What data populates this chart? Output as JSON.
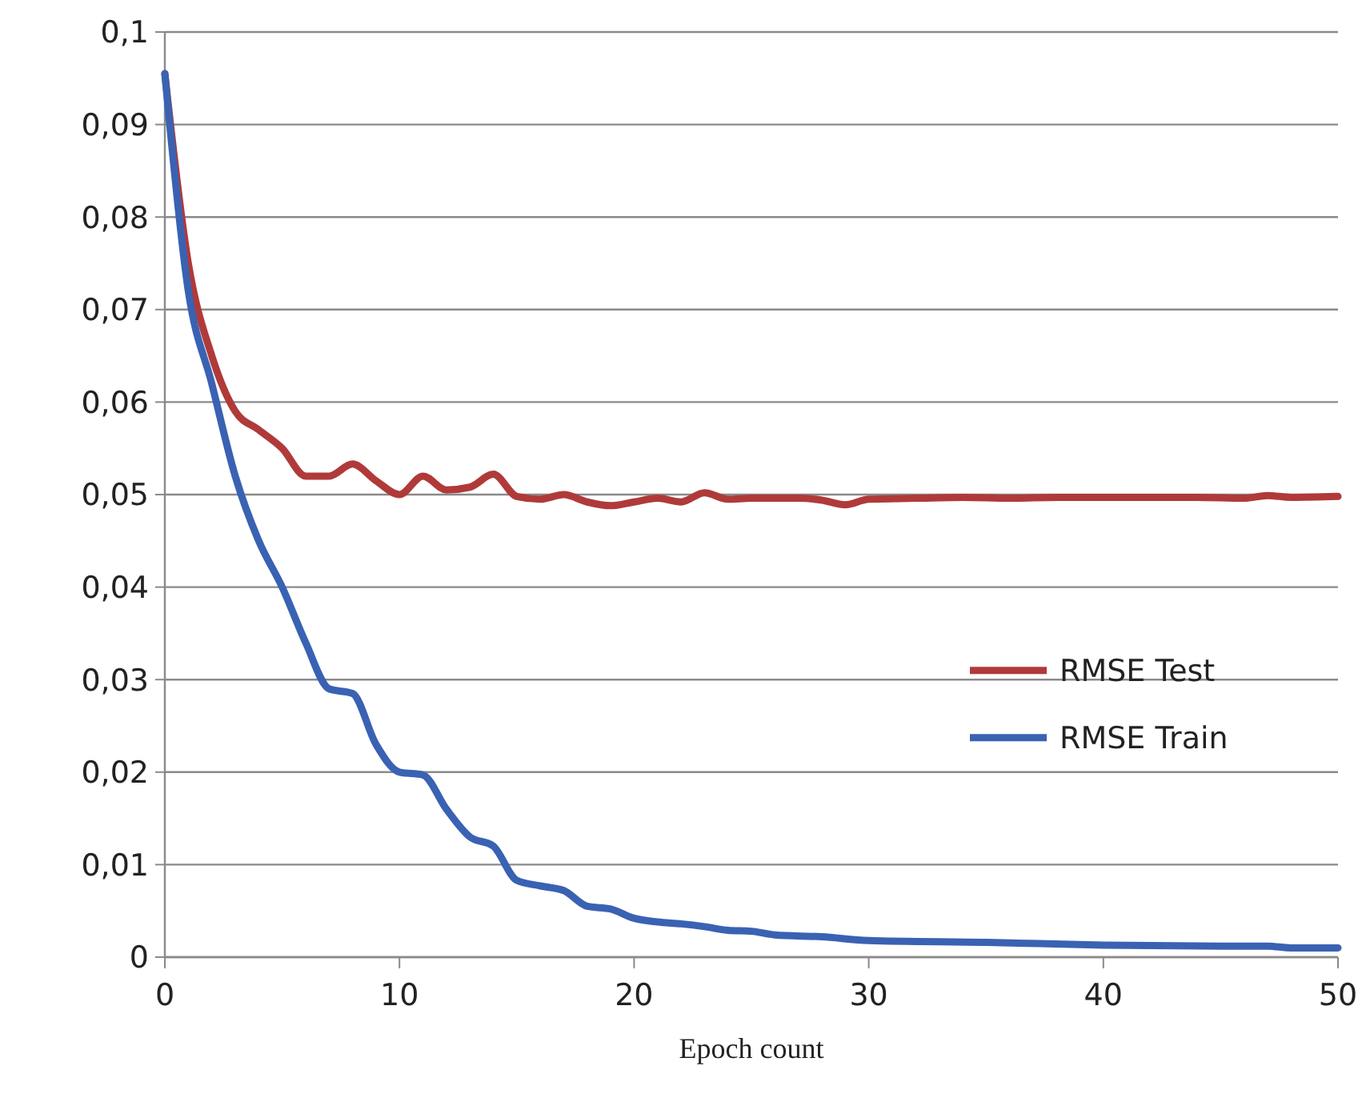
{
  "chart_data": {
    "type": "line",
    "xlabel": "Epoch count",
    "xlim": [
      0,
      50
    ],
    "xticks": [
      0,
      10,
      20,
      30,
      40,
      50
    ],
    "ylim": [
      0,
      0.1
    ],
    "yticks": [
      {
        "value": 0,
        "label": "0"
      },
      {
        "value": 0.01,
        "label": "0,01"
      },
      {
        "value": 0.02,
        "label": "0,02"
      },
      {
        "value": 0.03,
        "label": "0,03"
      },
      {
        "value": 0.04,
        "label": "0,04"
      },
      {
        "value": 0.05,
        "label": "0,05"
      },
      {
        "value": 0.06,
        "label": "0,06"
      },
      {
        "value": 0.07,
        "label": "0,07"
      },
      {
        "value": 0.08,
        "label": "0,08"
      },
      {
        "value": 0.09,
        "label": "0,09"
      },
      {
        "value": 0.1,
        "label": "0,1"
      }
    ],
    "grid": "y",
    "legend": "right",
    "marker": "none",
    "line_style": "solid",
    "series": [
      {
        "name": "RMSE Test",
        "color": "#b03a3a",
        "x": [
          0,
          1,
          2,
          3,
          4,
          5,
          6,
          7,
          8,
          9,
          10,
          11,
          12,
          13,
          14,
          15,
          16,
          17,
          18,
          19,
          20,
          21,
          22,
          23,
          24,
          25,
          26,
          27,
          28,
          29,
          30,
          32,
          34,
          36,
          38,
          40,
          42,
          44,
          46,
          47,
          48,
          50
        ],
        "values": [
          0.0955,
          0.075,
          0.065,
          0.059,
          0.057,
          0.055,
          0.052,
          0.052,
          0.0533,
          0.0515,
          0.05,
          0.052,
          0.0505,
          0.0508,
          0.0522,
          0.0498,
          0.0495,
          0.05,
          0.0492,
          0.0488,
          0.0492,
          0.0496,
          0.0492,
          0.0502,
          0.0495,
          0.0496,
          0.0496,
          0.0496,
          0.0494,
          0.0489,
          0.0495,
          0.0496,
          0.0497,
          0.0496,
          0.0497,
          0.0497,
          0.0497,
          0.0497,
          0.0496,
          0.0499,
          0.0497,
          0.0498
        ]
      },
      {
        "name": "RMSE Train",
        "color": "#3a62b3",
        "x": [
          0,
          1,
          2,
          3,
          4,
          5,
          6,
          7,
          8,
          9,
          10,
          11,
          12,
          13,
          14,
          15,
          16,
          17,
          18,
          19,
          20,
          21,
          22,
          23,
          24,
          25,
          26,
          28,
          30,
          35,
          40,
          45,
          47,
          48,
          50
        ],
        "values": [
          0.0955,
          0.072,
          0.062,
          0.052,
          0.045,
          0.04,
          0.034,
          0.029,
          0.0285,
          0.023,
          0.02,
          0.0197,
          0.016,
          0.013,
          0.012,
          0.0083,
          0.0077,
          0.0072,
          0.0055,
          0.0052,
          0.0042,
          0.0038,
          0.0036,
          0.0033,
          0.0029,
          0.0028,
          0.0024,
          0.0022,
          0.0018,
          0.0016,
          0.0013,
          0.0012,
          0.0012,
          0.001,
          0.001
        ]
      }
    ]
  }
}
